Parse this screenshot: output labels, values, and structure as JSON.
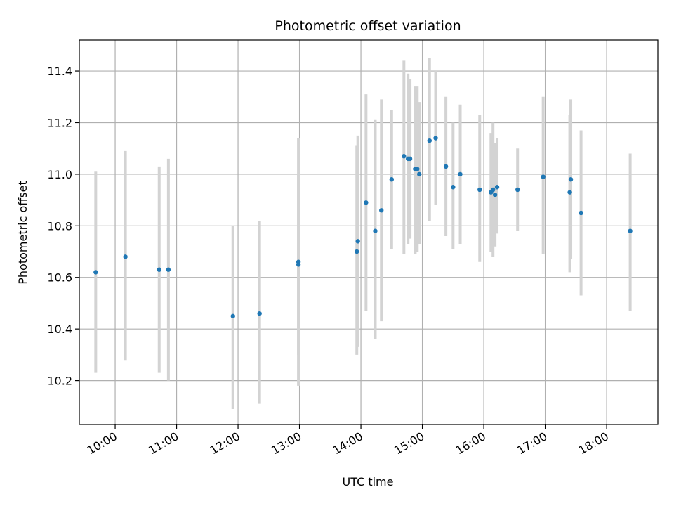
{
  "chart_data": {
    "type": "scatter",
    "title": "Photometric offset variation",
    "xlabel": "UTC time",
    "ylabel": "Photometric offset",
    "grid": true,
    "legend": "none",
    "x_unit": "hour (UTC)",
    "xlim": [
      "09:25",
      "18:50"
    ],
    "ylim": [
      10.03,
      11.52
    ],
    "x_ticks": [
      "10:00",
      "11:00",
      "12:00",
      "13:00",
      "14:00",
      "15:00",
      "16:00",
      "17:00",
      "18:00"
    ],
    "y_ticks": [
      "10.2",
      "10.4",
      "10.6",
      "10.8",
      "11.0",
      "11.2",
      "11.4"
    ],
    "colors": {
      "point": "#1f77b4",
      "errorbar": "#d3d3d3",
      "grid": "#b0b0b0"
    },
    "points": [
      {
        "x": "09:41",
        "y": 10.62,
        "ylow": 10.23,
        "yhigh": 11.01
      },
      {
        "x": "10:10",
        "y": 10.68,
        "ylow": 10.28,
        "yhigh": 11.09
      },
      {
        "x": "10:43",
        "y": 10.63,
        "ylow": 10.23,
        "yhigh": 11.03
      },
      {
        "x": "10:52",
        "y": 10.63,
        "ylow": 10.2,
        "yhigh": 11.06
      },
      {
        "x": "11:55",
        "y": 10.45,
        "ylow": 10.09,
        "yhigh": 10.8
      },
      {
        "x": "12:21",
        "y": 10.46,
        "ylow": 10.11,
        "yhigh": 10.82
      },
      {
        "x": "12:59",
        "y": 10.66,
        "ylow": 10.18,
        "yhigh": 11.14
      },
      {
        "x": "12:59",
        "y": 10.65,
        "ylow": 10.3,
        "yhigh": 11.0
      },
      {
        "x": "13:56",
        "y": 10.7,
        "ylow": 10.3,
        "yhigh": 11.11
      },
      {
        "x": "13:57",
        "y": 10.74,
        "ylow": 10.33,
        "yhigh": 11.15
      },
      {
        "x": "14:05",
        "y": 10.89,
        "ylow": 10.47,
        "yhigh": 11.31
      },
      {
        "x": "14:14",
        "y": 10.78,
        "ylow": 10.36,
        "yhigh": 11.21
      },
      {
        "x": "14:20",
        "y": 10.86,
        "ylow": 10.43,
        "yhigh": 11.29
      },
      {
        "x": "14:30",
        "y": 10.98,
        "ylow": 10.71,
        "yhigh": 11.25
      },
      {
        "x": "14:42",
        "y": 11.07,
        "ylow": 10.69,
        "yhigh": 11.44
      },
      {
        "x": "14:46",
        "y": 11.06,
        "ylow": 10.73,
        "yhigh": 11.39
      },
      {
        "x": "14:48",
        "y": 11.06,
        "ylow": 10.75,
        "yhigh": 11.37
      },
      {
        "x": "14:53",
        "y": 11.02,
        "ylow": 10.69,
        "yhigh": 11.34
      },
      {
        "x": "14:55",
        "y": 11.02,
        "ylow": 10.7,
        "yhigh": 11.34
      },
      {
        "x": "14:57",
        "y": 11.0,
        "ylow": 10.73,
        "yhigh": 11.28
      },
      {
        "x": "15:07",
        "y": 11.13,
        "ylow": 10.82,
        "yhigh": 11.45
      },
      {
        "x": "15:13",
        "y": 11.14,
        "ylow": 10.88,
        "yhigh": 11.4
      },
      {
        "x": "15:23",
        "y": 11.03,
        "ylow": 10.76,
        "yhigh": 11.3
      },
      {
        "x": "15:30",
        "y": 10.95,
        "ylow": 10.71,
        "yhigh": 11.2
      },
      {
        "x": "15:37",
        "y": 11.0,
        "ylow": 10.73,
        "yhigh": 11.27
      },
      {
        "x": "15:56",
        "y": 10.94,
        "ylow": 10.66,
        "yhigh": 11.23
      },
      {
        "x": "16:07",
        "y": 10.93,
        "ylow": 10.7,
        "yhigh": 11.16
      },
      {
        "x": "16:09",
        "y": 10.94,
        "ylow": 10.68,
        "yhigh": 11.2
      },
      {
        "x": "16:11",
        "y": 10.92,
        "ylow": 10.72,
        "yhigh": 11.12
      },
      {
        "x": "16:13",
        "y": 10.95,
        "ylow": 10.77,
        "yhigh": 11.14
      },
      {
        "x": "16:33",
        "y": 10.94,
        "ylow": 10.78,
        "yhigh": 11.1
      },
      {
        "x": "16:58",
        "y": 10.99,
        "ylow": 10.69,
        "yhigh": 11.3
      },
      {
        "x": "17:24",
        "y": 10.93,
        "ylow": 10.62,
        "yhigh": 11.23
      },
      {
        "x": "17:25",
        "y": 10.98,
        "ylow": 10.67,
        "yhigh": 11.29
      },
      {
        "x": "17:35",
        "y": 10.85,
        "ylow": 10.53,
        "yhigh": 11.17
      },
      {
        "x": "18:23",
        "y": 10.78,
        "ylow": 10.47,
        "yhigh": 11.08
      }
    ]
  }
}
